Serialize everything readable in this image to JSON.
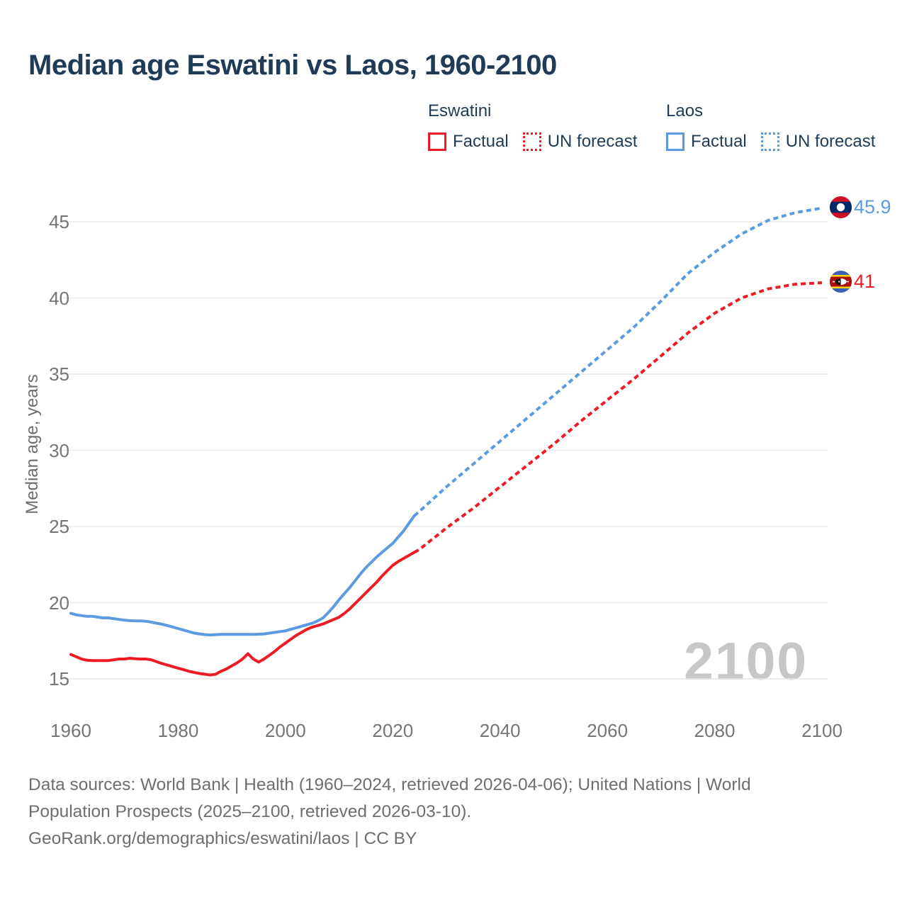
{
  "title": "Median age Eswatini vs Laos, 1960-2100",
  "watermark": "2100",
  "colors": {
    "eswatini": "#ED1C24",
    "laos": "#5B9BE0",
    "title_text": "#1f3b57",
    "tick_text": "#757575",
    "gridline": "#e9e9e9",
    "watermark_text": "#c7c7c7",
    "footer_text": "#6e6e6e"
  },
  "legend": {
    "groups": [
      {
        "name": "Eswatini",
        "color": "#ED1C24",
        "items": [
          {
            "label": "Factual",
            "box_style": "solid"
          },
          {
            "label": "UN forecast",
            "box_style": "dotted"
          }
        ]
      },
      {
        "name": "Laos",
        "color": "#5B9BE0",
        "items": [
          {
            "label": "Factual",
            "box_style": "solid"
          },
          {
            "label": "UN forecast",
            "box_style": "dotted"
          }
        ]
      }
    ]
  },
  "end_labels": [
    {
      "series": "Laos",
      "value": "45.9",
      "color": "#5B9BE0",
      "flag": "laos-flag"
    },
    {
      "series": "Eswatini",
      "value": "41",
      "color": "#ED1C24",
      "flag": "eswatini-flag"
    }
  ],
  "footer": {
    "lines": [
      "Data sources: World Bank | Health (1960–2024, retrieved 2026-04-06); United Nations | World",
      "Population Prospects (2025–2100, retrieved 2026-03-10).",
      "GeoRank.org/demographics/eswatini/laos | CC BY"
    ]
  },
  "chart_data": {
    "type": "line",
    "title": "Median age Eswatini vs Laos, 1960-2100",
    "xlabel": "",
    "ylabel": "Median age, years",
    "xlim": [
      1960,
      2100
    ],
    "ylim": [
      15,
      45
    ],
    "x_ticks": [
      1960,
      1980,
      2000,
      2020,
      2040,
      2060,
      2080,
      2100
    ],
    "y_ticks": [
      15,
      20,
      25,
      30,
      35,
      40,
      45
    ],
    "grid": "horizontal-only",
    "legend_position": "top-right",
    "series": [
      {
        "name": "Eswatini factual",
        "color": "#ED1C24",
        "dashed": false,
        "points": [
          [
            1960,
            16.6
          ],
          [
            1961,
            16.45
          ],
          [
            1962,
            16.3
          ],
          [
            1963,
            16.22
          ],
          [
            1964,
            16.2
          ],
          [
            1965,
            16.2
          ],
          [
            1966,
            16.2
          ],
          [
            1967,
            16.2
          ],
          [
            1968,
            16.25
          ],
          [
            1969,
            16.3
          ],
          [
            1970,
            16.3
          ],
          [
            1971,
            16.35
          ],
          [
            1972,
            16.32
          ],
          [
            1973,
            16.3
          ],
          [
            1974,
            16.3
          ],
          [
            1975,
            16.25
          ],
          [
            1976,
            16.12
          ],
          [
            1977,
            16.0
          ],
          [
            1978,
            15.9
          ],
          [
            1979,
            15.8
          ],
          [
            1980,
            15.7
          ],
          [
            1981,
            15.6
          ],
          [
            1982,
            15.5
          ],
          [
            1983,
            15.42
          ],
          [
            1984,
            15.35
          ],
          [
            1985,
            15.3
          ],
          [
            1986,
            15.25
          ],
          [
            1987,
            15.3
          ],
          [
            1988,
            15.5
          ],
          [
            1989,
            15.65
          ],
          [
            1990,
            15.85
          ],
          [
            1991,
            16.05
          ],
          [
            1992,
            16.3
          ],
          [
            1993,
            16.65
          ],
          [
            1994,
            16.3
          ],
          [
            1995,
            16.1
          ],
          [
            1996,
            16.3
          ],
          [
            1997,
            16.55
          ],
          [
            1998,
            16.8
          ],
          [
            1999,
            17.1
          ],
          [
            2000,
            17.35
          ],
          [
            2001,
            17.6
          ],
          [
            2002,
            17.85
          ],
          [
            2003,
            18.05
          ],
          [
            2004,
            18.25
          ],
          [
            2005,
            18.4
          ],
          [
            2006,
            18.5
          ],
          [
            2007,
            18.6
          ],
          [
            2008,
            18.75
          ],
          [
            2009,
            18.9
          ],
          [
            2010,
            19.05
          ],
          [
            2011,
            19.3
          ],
          [
            2012,
            19.6
          ],
          [
            2013,
            19.95
          ],
          [
            2014,
            20.3
          ],
          [
            2015,
            20.65
          ],
          [
            2016,
            21.0
          ],
          [
            2017,
            21.35
          ],
          [
            2018,
            21.75
          ],
          [
            2019,
            22.1
          ],
          [
            2020,
            22.45
          ],
          [
            2021,
            22.7
          ],
          [
            2022,
            22.9
          ],
          [
            2023,
            23.1
          ],
          [
            2024,
            23.3
          ]
        ]
      },
      {
        "name": "Eswatini UN forecast",
        "color": "#ED1C24",
        "dashed": true,
        "points": [
          [
            2024,
            23.3
          ],
          [
            2025,
            23.5
          ],
          [
            2030,
            24.9
          ],
          [
            2035,
            26.2
          ],
          [
            2040,
            27.6
          ],
          [
            2045,
            29.0
          ],
          [
            2050,
            30.4
          ],
          [
            2055,
            31.9
          ],
          [
            2060,
            33.3
          ],
          [
            2065,
            34.7
          ],
          [
            2070,
            36.2
          ],
          [
            2075,
            37.7
          ],
          [
            2080,
            39.0
          ],
          [
            2085,
            40.0
          ],
          [
            2090,
            40.6
          ],
          [
            2095,
            40.9
          ],
          [
            2100,
            41.0
          ]
        ]
      },
      {
        "name": "Laos factual",
        "color": "#5B9BE0",
        "dashed": false,
        "points": [
          [
            1960,
            19.3
          ],
          [
            1961,
            19.2
          ],
          [
            1962,
            19.15
          ],
          [
            1963,
            19.1
          ],
          [
            1964,
            19.1
          ],
          [
            1965,
            19.05
          ],
          [
            1966,
            19.0
          ],
          [
            1967,
            19.0
          ],
          [
            1968,
            18.95
          ],
          [
            1969,
            18.9
          ],
          [
            1970,
            18.85
          ],
          [
            1971,
            18.82
          ],
          [
            1972,
            18.8
          ],
          [
            1973,
            18.8
          ],
          [
            1974,
            18.78
          ],
          [
            1975,
            18.72
          ],
          [
            1976,
            18.65
          ],
          [
            1977,
            18.58
          ],
          [
            1978,
            18.5
          ],
          [
            1979,
            18.4
          ],
          [
            1980,
            18.3
          ],
          [
            1981,
            18.2
          ],
          [
            1982,
            18.1
          ],
          [
            1983,
            18.0
          ],
          [
            1984,
            17.95
          ],
          [
            1985,
            17.9
          ],
          [
            1986,
            17.88
          ],
          [
            1987,
            17.9
          ],
          [
            1988,
            17.92
          ],
          [
            1989,
            17.92
          ],
          [
            1990,
            17.92
          ],
          [
            1991,
            17.92
          ],
          [
            1992,
            17.92
          ],
          [
            1993,
            17.92
          ],
          [
            1994,
            17.92
          ],
          [
            1995,
            17.93
          ],
          [
            1996,
            17.95
          ],
          [
            1997,
            18.0
          ],
          [
            1998,
            18.05
          ],
          [
            1999,
            18.1
          ],
          [
            2000,
            18.15
          ],
          [
            2001,
            18.25
          ],
          [
            2002,
            18.35
          ],
          [
            2003,
            18.45
          ],
          [
            2004,
            18.55
          ],
          [
            2005,
            18.65
          ],
          [
            2006,
            18.8
          ],
          [
            2007,
            19.0
          ],
          [
            2008,
            19.35
          ],
          [
            2009,
            19.75
          ],
          [
            2010,
            20.2
          ],
          [
            2011,
            20.6
          ],
          [
            2012,
            21.0
          ],
          [
            2013,
            21.45
          ],
          [
            2014,
            21.9
          ],
          [
            2015,
            22.3
          ],
          [
            2016,
            22.65
          ],
          [
            2017,
            23.0
          ],
          [
            2018,
            23.3
          ],
          [
            2019,
            23.6
          ],
          [
            2020,
            23.9
          ],
          [
            2021,
            24.3
          ],
          [
            2022,
            24.7
          ],
          [
            2023,
            25.2
          ],
          [
            2024,
            25.7
          ]
        ]
      },
      {
        "name": "Laos UN forecast",
        "color": "#5B9BE0",
        "dashed": true,
        "points": [
          [
            2024,
            25.7
          ],
          [
            2025,
            26.0
          ],
          [
            2030,
            27.6
          ],
          [
            2035,
            29.1
          ],
          [
            2040,
            30.6
          ],
          [
            2045,
            32.1
          ],
          [
            2050,
            33.6
          ],
          [
            2055,
            35.1
          ],
          [
            2060,
            36.6
          ],
          [
            2065,
            38.1
          ],
          [
            2070,
            39.8
          ],
          [
            2075,
            41.6
          ],
          [
            2080,
            43.0
          ],
          [
            2085,
            44.2
          ],
          [
            2090,
            45.1
          ],
          [
            2095,
            45.6
          ],
          [
            2100,
            45.9
          ]
        ]
      }
    ]
  }
}
